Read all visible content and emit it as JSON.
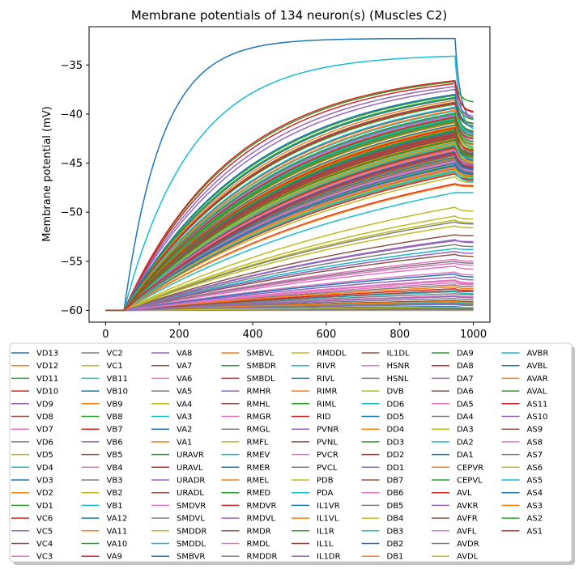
{
  "chart_data": {
    "type": "line",
    "title": "Membrane potentials of 134 neuron(s) (Muscles C2)",
    "xlabel": "",
    "ylabel": "Membrane potential (mV)",
    "xlim": [
      -45,
      1045
    ],
    "ylim": [
      -61.2,
      -31.1
    ],
    "x_ticks": [
      0,
      200,
      400,
      600,
      800,
      1000
    ],
    "y_ticks": [
      -60,
      -55,
      -50,
      -45,
      -40,
      -35
    ],
    "x_tick_labels": [
      "0",
      "200",
      "400",
      "600",
      "800",
      "1000"
    ],
    "y_tick_labels": [
      "−60",
      "−55",
      "−50",
      "−45",
      "−40",
      "−35"
    ],
    "grid": false,
    "legend_placement": "below",
    "legend_columns": 8,
    "stimulus_window": [
      50,
      950
    ],
    "palette": [
      "#1f77b4",
      "#ff7f0e",
      "#2ca02c",
      "#d62728",
      "#9467bd",
      "#8c564b",
      "#e377c2",
      "#7f7f7f",
      "#bcbd22",
      "#17becf"
    ],
    "series": [
      {
        "name": "VD13",
        "peak": -32.3,
        "final": -40.8
      },
      {
        "name": "VD12",
        "peak": -41.5,
        "final": -44.5
      },
      {
        "name": "VD11",
        "peak": -40.4,
        "final": -43.6
      },
      {
        "name": "VD10",
        "peak": -43.2,
        "final": -45.8
      },
      {
        "name": "VD9",
        "peak": -44.1,
        "final": -46.0
      },
      {
        "name": "VD8",
        "peak": -42.0,
        "final": -44.9
      },
      {
        "name": "VD7",
        "peak": -57.0,
        "final": -57.3
      },
      {
        "name": "VD6",
        "peak": -40.7,
        "final": -44.2
      },
      {
        "name": "VD5",
        "peak": -42.5,
        "final": -45.3
      },
      {
        "name": "VD4",
        "peak": -34.1,
        "final": -41.7
      },
      {
        "name": "VD3",
        "peak": -38.4,
        "final": -42.2
      },
      {
        "name": "VD2",
        "peak": -38.6,
        "final": -42.0
      },
      {
        "name": "VD1",
        "peak": -36.7,
        "final": -38.8
      },
      {
        "name": "VC6",
        "peak": -42.7,
        "final": -45.2
      },
      {
        "name": "VC5",
        "peak": -43.5,
        "final": -46.0
      },
      {
        "name": "VC4",
        "peak": -43.8,
        "final": -45.5
      },
      {
        "name": "VC3",
        "peak": -56.9,
        "final": -57.2
      },
      {
        "name": "VC2",
        "peak": -60.0,
        "final": -60.0
      },
      {
        "name": "VC1",
        "peak": -43.0,
        "final": -44.7
      },
      {
        "name": "VB11",
        "peak": -40.1,
        "final": -42.5
      },
      {
        "name": "VB10",
        "peak": -42.3,
        "final": -44.8
      },
      {
        "name": "VB9",
        "peak": -43.6,
        "final": -45.0
      },
      {
        "name": "VB8",
        "peak": -39.0,
        "final": -41.8
      },
      {
        "name": "VB7",
        "peak": -42.1,
        "final": -44.2
      },
      {
        "name": "VB6",
        "peak": -45.6,
        "final": -46.5
      },
      {
        "name": "VB5",
        "peak": -43.9,
        "final": -45.1
      },
      {
        "name": "VB4",
        "peak": -56.1,
        "final": -56.4
      },
      {
        "name": "VB3",
        "peak": -44.7,
        "final": -45.9
      },
      {
        "name": "VB2",
        "peak": -45.1,
        "final": -46.2
      },
      {
        "name": "VB1",
        "peak": -59.2,
        "final": -59.3
      },
      {
        "name": "VA12",
        "peak": -59.6,
        "final": -59.7
      },
      {
        "name": "VA11",
        "peak": -60.0,
        "final": -60.0
      },
      {
        "name": "VA10",
        "peak": -45.3,
        "final": -46.4
      },
      {
        "name": "VA9",
        "peak": -42.4,
        "final": -44.1
      },
      {
        "name": "VA8",
        "peak": -37.2,
        "final": -40.5
      },
      {
        "name": "VA7",
        "peak": -59.0,
        "final": -59.1
      },
      {
        "name": "VA6",
        "peak": -40.2,
        "final": -42.8
      },
      {
        "name": "VA5",
        "peak": -42.8,
        "final": -44.4
      },
      {
        "name": "VA4",
        "peak": -41.2,
        "final": -43.5
      },
      {
        "name": "VA3",
        "peak": -40.5,
        "final": -43.4
      },
      {
        "name": "VA2",
        "peak": -41.1,
        "final": -44.0
      },
      {
        "name": "VA1",
        "peak": -40.9,
        "final": -43.2
      },
      {
        "name": "URAVR",
        "peak": -38.1,
        "final": -40.6
      },
      {
        "name": "URAVL",
        "peak": -36.9,
        "final": -39.8
      },
      {
        "name": "URADR",
        "peak": -52.8,
        "final": -53.1
      },
      {
        "name": "URADL",
        "peak": -38.8,
        "final": -41.0
      },
      {
        "name": "SMDVR",
        "peak": -55.5,
        "final": -55.8
      },
      {
        "name": "SMDVL",
        "peak": -57.4,
        "final": -57.6
      },
      {
        "name": "SMDDR",
        "peak": -50.8,
        "final": -51.1
      },
      {
        "name": "SMDDL",
        "peak": -58.1,
        "final": -58.3
      },
      {
        "name": "SMBVR",
        "peak": -56.3,
        "final": -56.6
      },
      {
        "name": "SMBVL",
        "peak": -46.0,
        "final": -46.8
      },
      {
        "name": "SMBDR",
        "peak": -42.6,
        "final": -44.4
      },
      {
        "name": "SMBDL",
        "peak": -57.8,
        "final": -58.0
      },
      {
        "name": "RMHR",
        "peak": -59.4,
        "final": -59.5
      },
      {
        "name": "RMHL",
        "peak": -39.4,
        "final": -41.9
      },
      {
        "name": "RMGR",
        "peak": -54.8,
        "final": -55.0
      },
      {
        "name": "RMGL",
        "peak": -51.0,
        "final": -51.2
      },
      {
        "name": "RMFL",
        "peak": -44.3,
        "final": -45.6
      },
      {
        "name": "RMEV",
        "peak": -53.7,
        "final": -53.8
      },
      {
        "name": "RMER",
        "peak": -59.8,
        "final": -59.8
      },
      {
        "name": "RMEL",
        "peak": -57.6,
        "final": -57.8
      },
      {
        "name": "RMED",
        "peak": -41.7,
        "final": -43.8
      },
      {
        "name": "RMDVR",
        "peak": -36.6,
        "final": -39.9
      },
      {
        "name": "RMDVL",
        "peak": -52.9,
        "final": -53.0
      },
      {
        "name": "RMDR",
        "peak": -54.3,
        "final": -54.5
      },
      {
        "name": "RMDL",
        "peak": -58.5,
        "final": -58.6
      },
      {
        "name": "RMDDR",
        "peak": -59.9,
        "final": -59.9
      },
      {
        "name": "RMDDL",
        "peak": -49.5,
        "final": -49.9
      },
      {
        "name": "RIVR",
        "peak": -42.9,
        "final": -45.4
      },
      {
        "name": "RIVL",
        "peak": -41.8,
        "final": -44.3
      },
      {
        "name": "RIMR",
        "peak": -44.5,
        "final": -46.1
      },
      {
        "name": "RIML",
        "peak": -43.3,
        "final": -45.0
      },
      {
        "name": "RID",
        "peak": -47.1,
        "final": -47.3
      },
      {
        "name": "PVNR",
        "peak": -40.0,
        "final": -42.1
      },
      {
        "name": "PVNL",
        "peak": -52.3,
        "final": -52.4
      },
      {
        "name": "PVCR",
        "peak": -45.4,
        "final": -46.6
      },
      {
        "name": "PVCL",
        "peak": -58.8,
        "final": -58.9
      },
      {
        "name": "PDB",
        "peak": -50.4,
        "final": -50.7
      },
      {
        "name": "PDA",
        "peak": -45.8,
        "final": -46.6
      },
      {
        "name": "IL1VR",
        "peak": -45.2,
        "final": -46.2
      },
      {
        "name": "IL1VL",
        "peak": -59.1,
        "final": -59.2
      },
      {
        "name": "IL1R",
        "peak": -40.8,
        "final": -43.1
      },
      {
        "name": "IL1L",
        "peak": -38.9,
        "final": -41.3
      },
      {
        "name": "IL1DR",
        "peak": -56.6,
        "final": -56.9
      },
      {
        "name": "IL1DL",
        "peak": -41.9,
        "final": -44.3
      },
      {
        "name": "HSNR",
        "peak": -55.2,
        "final": -55.4
      },
      {
        "name": "HSNL",
        "peak": -55.0,
        "final": -55.2
      },
      {
        "name": "DVB",
        "peak": -46.4,
        "final": -47.0
      },
      {
        "name": "DD6",
        "peak": -48.0,
        "final": -48.0
      },
      {
        "name": "DD5",
        "peak": -44.4,
        "final": -45.7
      },
      {
        "name": "DD4",
        "peak": -43.1,
        "final": -44.9
      },
      {
        "name": "DD3",
        "peak": -38.3,
        "final": -41.1
      },
      {
        "name": "DD2",
        "peak": -43.4,
        "final": -45.3
      },
      {
        "name": "DD1",
        "peak": -37.5,
        "final": -40.3
      },
      {
        "name": "DB7",
        "peak": -42.2,
        "final": -44.1
      },
      {
        "name": "DB6",
        "peak": -44.9,
        "final": -46.0
      },
      {
        "name": "DB5",
        "peak": -58.3,
        "final": -58.4
      },
      {
        "name": "DB4",
        "peak": -51.4,
        "final": -51.6
      },
      {
        "name": "DB3",
        "peak": -39.7,
        "final": -42.0
      },
      {
        "name": "DB2",
        "peak": -38.0,
        "final": -41.4
      },
      {
        "name": "DB1",
        "peak": -45.5,
        "final": -46.3
      },
      {
        "name": "DA9",
        "peak": -40.6,
        "final": -42.9
      },
      {
        "name": "DA8",
        "peak": -46.1,
        "final": -46.7
      },
      {
        "name": "DA7",
        "peak": -43.7,
        "final": -45.3
      },
      {
        "name": "DA6",
        "peak": -42.3,
        "final": -44.6
      },
      {
        "name": "DA5",
        "peak": -44.8,
        "final": -45.8
      },
      {
        "name": "DA4",
        "peak": -53.3,
        "final": -53.5
      },
      {
        "name": "DA3",
        "peak": -59.7,
        "final": -59.7
      },
      {
        "name": "DA2",
        "peak": -39.3,
        "final": -42.0
      },
      {
        "name": "DA1",
        "peak": -43.9,
        "final": -45.7
      },
      {
        "name": "CEPVR",
        "peak": -41.3,
        "final": -43.9
      },
      {
        "name": "CEPVL",
        "peak": -41.6,
        "final": -43.7
      },
      {
        "name": "AVL",
        "peak": -40.3,
        "final": -42.6
      },
      {
        "name": "AVKR",
        "peak": -54.0,
        "final": -54.2
      },
      {
        "name": "AVFR",
        "peak": -58.0,
        "final": -58.1
      },
      {
        "name": "AVFL",
        "peak": -57.2,
        "final": -57.4
      },
      {
        "name": "AVDR",
        "peak": -59.3,
        "final": -59.4
      },
      {
        "name": "AVDL",
        "peak": -42.8,
        "final": -45.0
      },
      {
        "name": "AVBR",
        "peak": -43.2,
        "final": -44.6
      },
      {
        "name": "AVBL",
        "peak": -45.0,
        "final": -46.1
      },
      {
        "name": "AVAR",
        "peak": -39.6,
        "final": -42.4
      },
      {
        "name": "AVAL",
        "peak": -39.9,
        "final": -42.3
      },
      {
        "name": "AS11",
        "peak": -41.4,
        "final": -43.8
      },
      {
        "name": "AS10",
        "peak": -58.6,
        "final": -58.7
      },
      {
        "name": "AS9",
        "peak": -44.2,
        "final": -45.4
      },
      {
        "name": "AS8",
        "peak": -43.7,
        "final": -45.1
      },
      {
        "name": "AS7",
        "peak": -44.6,
        "final": -46.0
      },
      {
        "name": "AS6",
        "peak": -45.7,
        "final": -46.5
      },
      {
        "name": "AS5",
        "peak": -45.9,
        "final": -46.9
      },
      {
        "name": "AS4",
        "peak": -44.0,
        "final": -45.6
      },
      {
        "name": "AS3",
        "peak": -47.2,
        "final": -47.4
      },
      {
        "name": "AS2",
        "peak": -42.6,
        "final": -44.3
      },
      {
        "name": "AS1",
        "peak": -44.0,
        "final": -45.5
      }
    ]
  }
}
